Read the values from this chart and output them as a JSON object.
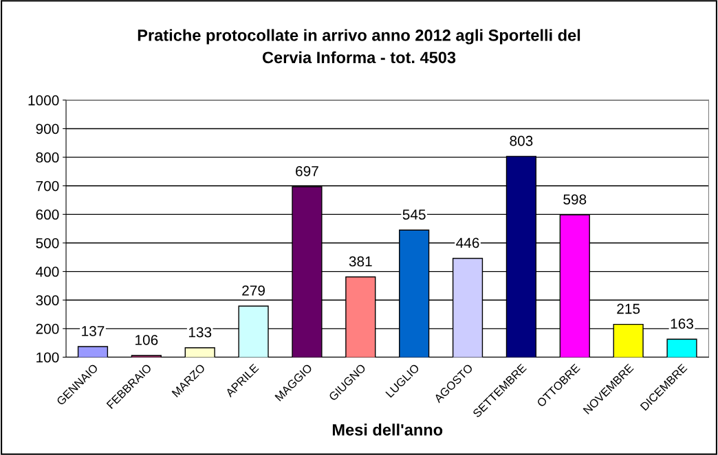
{
  "chart_data": {
    "type": "bar",
    "title": "Pratiche protocollate in arrivo anno 2012 agli Sportelli del\nCervia Informa - tot. 4503",
    "xlabel": "Mesi dell'anno",
    "categories": [
      "GENNAIO",
      "FEBBRAIO",
      "MARZO",
      "APRILE",
      "MAGGIO",
      "GIUGNO",
      "LUGLIO",
      "AGOSTO",
      "SETTEMBRE",
      "OTTOBRE",
      "NOVEMBRE",
      "DICEMBRE"
    ],
    "values": [
      137,
      106,
      133,
      279,
      697,
      381,
      545,
      446,
      803,
      598,
      215,
      163
    ],
    "colors": [
      "#9999ff",
      "#993366",
      "#ffffcc",
      "#ccffff",
      "#660066",
      "#ff8080",
      "#0066cc",
      "#ccccff",
      "#000080",
      "#ff00ff",
      "#ffff00",
      "#00ffff"
    ],
    "ylim": [
      100,
      1000
    ],
    "yticks": [
      100,
      200,
      300,
      400,
      500,
      600,
      700,
      800,
      900,
      1000
    ],
    "grid": "y",
    "data_labels": true,
    "legend": false
  }
}
